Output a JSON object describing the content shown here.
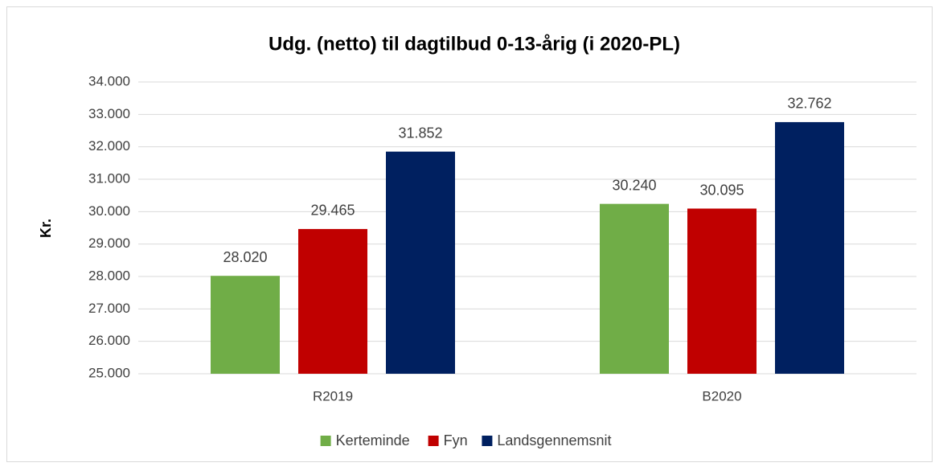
{
  "chart_data": {
    "type": "bar",
    "title": "Udg. (netto) til dagtilbud 0-13-årig (i 2020-PL)",
    "y_label": "Kr.",
    "categories": [
      "R2019",
      "B2020"
    ],
    "series": [
      {
        "name": "Kerteminde",
        "color": "#70ad47",
        "values": [
          28020,
          30240
        ],
        "value_labels": [
          "28.020",
          "30.240"
        ]
      },
      {
        "name": "Fyn",
        "color": "#c00000",
        "values": [
          29465,
          30095
        ],
        "value_labels": [
          "29.465",
          "30.095"
        ]
      },
      {
        "name": "Landsgennemsnit",
        "color": "#002060",
        "values": [
          31852,
          32762
        ],
        "value_labels": [
          "31.852",
          "32.762"
        ]
      }
    ],
    "ylim": [
      25000,
      34000
    ],
    "yticks": [
      {
        "value": 25000,
        "label": "25.000"
      },
      {
        "value": 26000,
        "label": "26.000"
      },
      {
        "value": 27000,
        "label": "27.000"
      },
      {
        "value": 28000,
        "label": "28.000"
      },
      {
        "value": 29000,
        "label": "29.000"
      },
      {
        "value": 30000,
        "label": "30.000"
      },
      {
        "value": 31000,
        "label": "31.000"
      },
      {
        "value": 32000,
        "label": "32.000"
      },
      {
        "value": 33000,
        "label": "33.000"
      },
      {
        "value": 34000,
        "label": "34.000"
      }
    ],
    "grid": true,
    "legend": "bottom"
  }
}
